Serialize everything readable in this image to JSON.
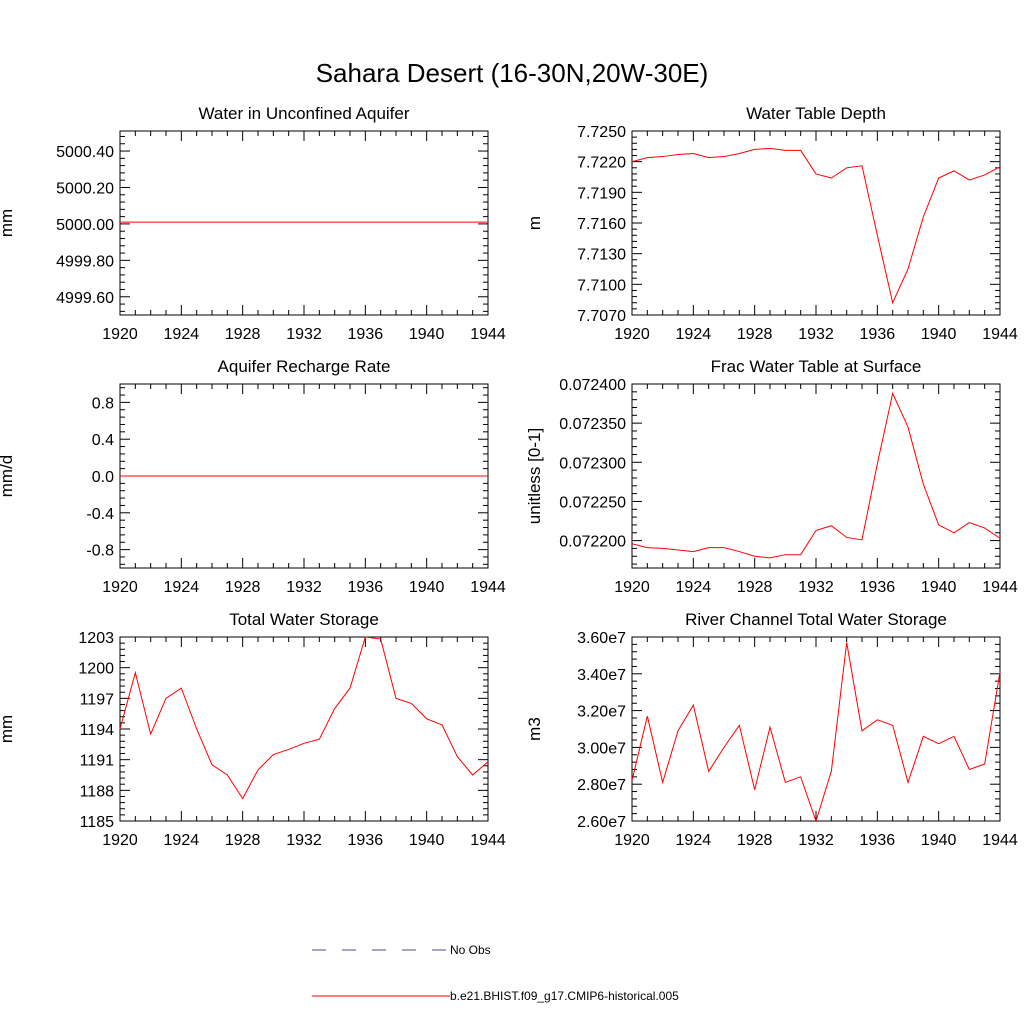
{
  "title": "Sahara Desert (16-30N,20W-30E)",
  "colors": {
    "series": "#ff0000",
    "obs": "#4a4a8a",
    "axis": "#000000"
  },
  "legend": {
    "obs_label": "No Obs",
    "model_label": "b.e21.BHIST.f09_g17.CMIP6-historical.005"
  },
  "chart_data": [
    {
      "type": "line",
      "title": "Water in Unconfined Aquifer",
      "ylabel": "mm",
      "xlim": [
        1920,
        1944
      ],
      "ylim": [
        4999.5,
        5000.51
      ],
      "xticks": [
        1920,
        1924,
        1928,
        1932,
        1936,
        1940,
        1944
      ],
      "xtick_labels": [
        "1920",
        "1924",
        "1928",
        "1932",
        "1936",
        "1940",
        "1944"
      ],
      "yticks": [
        4999.6,
        4999.8,
        5000.0,
        5000.2,
        5000.4
      ],
      "ytick_labels": [
        "4999.60",
        "4999.80",
        "5000.00",
        "5000.20",
        "5000.40"
      ],
      "x": [
        1920,
        1944
      ],
      "y": [
        5000.01,
        5000.01
      ]
    },
    {
      "type": "line",
      "title": "Water Table Depth",
      "ylabel": "m",
      "xlim": [
        1920,
        1944
      ],
      "ylim": [
        7.707,
        7.725
      ],
      "xticks": [
        1920,
        1924,
        1928,
        1932,
        1936,
        1940,
        1944
      ],
      "xtick_labels": [
        "1920",
        "1924",
        "1928",
        "1932",
        "1936",
        "1940",
        "1944"
      ],
      "yticks": [
        7.707,
        7.71,
        7.713,
        7.716,
        7.719,
        7.722,
        7.725
      ],
      "ytick_labels": [
        "7.7070",
        "7.7100",
        "7.7130",
        "7.7160",
        "7.7190",
        "7.7220",
        "7.7250"
      ],
      "x": [
        1920,
        1921,
        1922,
        1923,
        1924,
        1925,
        1926,
        1927,
        1928,
        1929,
        1930,
        1931,
        1932,
        1933,
        1934,
        1935,
        1936,
        1937,
        1938,
        1939,
        1940,
        1941,
        1942,
        1943,
        1944
      ],
      "y": [
        7.722,
        7.7224,
        7.7225,
        7.7227,
        7.7228,
        7.7224,
        7.7225,
        7.7228,
        7.7232,
        7.7233,
        7.7231,
        7.7231,
        7.7208,
        7.7204,
        7.7214,
        7.7216,
        7.7148,
        7.7082,
        7.7115,
        7.7166,
        7.7204,
        7.7211,
        7.7202,
        7.7207,
        7.7215
      ]
    },
    {
      "type": "line",
      "title": "Aquifer Recharge Rate",
      "ylabel": "mm/d",
      "xlim": [
        1920,
        1944
      ],
      "ylim": [
        -1.0,
        1.0
      ],
      "xticks": [
        1920,
        1924,
        1928,
        1932,
        1936,
        1940,
        1944
      ],
      "xtick_labels": [
        "1920",
        "1924",
        "1928",
        "1932",
        "1936",
        "1940",
        "1944"
      ],
      "yticks": [
        -0.8,
        -0.4,
        0.0,
        0.4,
        0.8
      ],
      "ytick_labels": [
        "-0.8",
        "-0.4",
        "0.0",
        "0.4",
        "0.8"
      ],
      "x": [
        1920,
        1944
      ],
      "y": [
        0.0,
        0.0
      ]
    },
    {
      "type": "line",
      "title": "Frac Water Table at Surface",
      "ylabel": "unitless [0-1]",
      "xlim": [
        1920,
        1944
      ],
      "ylim": [
        0.072165,
        0.0724
      ],
      "xticks": [
        1920,
        1924,
        1928,
        1932,
        1936,
        1940,
        1944
      ],
      "xtick_labels": [
        "1920",
        "1924",
        "1928",
        "1932",
        "1936",
        "1940",
        "1944"
      ],
      "yticks": [
        0.0722,
        0.07225,
        0.0723,
        0.07235,
        0.0724
      ],
      "ytick_labels": [
        "0.072200",
        "0.072250",
        "0.072300",
        "0.072350",
        "0.072400"
      ],
      "x": [
        1920,
        1921,
        1922,
        1923,
        1924,
        1925,
        1926,
        1927,
        1928,
        1929,
        1930,
        1931,
        1932,
        1933,
        1934,
        1935,
        1936,
        1937,
        1938,
        1939,
        1940,
        1941,
        1942,
        1943,
        1944
      ],
      "y": [
        0.072196,
        0.072191,
        0.07219,
        0.072188,
        0.072186,
        0.072191,
        0.072191,
        0.072186,
        0.07218,
        0.072178,
        0.072182,
        0.072182,
        0.072213,
        0.072219,
        0.072204,
        0.072201,
        0.072298,
        0.072388,
        0.072345,
        0.072272,
        0.07222,
        0.07221,
        0.072223,
        0.072216,
        0.072203
      ]
    },
    {
      "type": "line",
      "title": "Total Water Storage",
      "ylabel": "mm",
      "xlim": [
        1920,
        1944
      ],
      "ylim": [
        1185,
        1203
      ],
      "xticks": [
        1920,
        1924,
        1928,
        1932,
        1936,
        1940,
        1944
      ],
      "xtick_labels": [
        "1920",
        "1924",
        "1928",
        "1932",
        "1936",
        "1940",
        "1944"
      ],
      "yticks": [
        1185,
        1188,
        1191,
        1194,
        1197,
        1200,
        1203
      ],
      "ytick_labels": [
        "1185",
        "1188",
        "1191",
        "1194",
        "1197",
        "1200",
        "1203"
      ],
      "x": [
        1920,
        1921,
        1922,
        1923,
        1924,
        1925,
        1926,
        1927,
        1928,
        1929,
        1930,
        1931,
        1932,
        1933,
        1934,
        1935,
        1936,
        1937,
        1938,
        1939,
        1940,
        1941,
        1942,
        1943,
        1944
      ],
      "y": [
        1194.0,
        1199.5,
        1193.5,
        1197.0,
        1198.0,
        1194.0,
        1190.5,
        1189.5,
        1187.2,
        1190.0,
        1191.5,
        1192.0,
        1192.6,
        1193.0,
        1196.0,
        1198.0,
        1203.0,
        1202.8,
        1197.0,
        1196.5,
        1195.0,
        1194.4,
        1191.3,
        1189.5,
        1190.8
      ]
    },
    {
      "type": "line",
      "title": "River Channel Total Water Storage",
      "ylabel": "m3",
      "xlim": [
        1920,
        1944
      ],
      "ylim": [
        26000000,
        36000000
      ],
      "xticks": [
        1920,
        1924,
        1928,
        1932,
        1936,
        1940,
        1944
      ],
      "xtick_labels": [
        "1920",
        "1924",
        "1928",
        "1932",
        "1936",
        "1940",
        "1944"
      ],
      "yticks": [
        26000000,
        28000000,
        30000000,
        32000000,
        34000000,
        36000000
      ],
      "ytick_labels": [
        "2.60e7",
        "2.80e7",
        "3.00e7",
        "3.20e7",
        "3.40e7",
        "3.60e7"
      ],
      "x": [
        1920,
        1921,
        1922,
        1923,
        1924,
        1925,
        1926,
        1927,
        1928,
        1929,
        1930,
        1931,
        1932,
        1933,
        1934,
        1935,
        1936,
        1937,
        1938,
        1939,
        1940,
        1941,
        1942,
        1943,
        1944
      ],
      "y": [
        28200000,
        31700000,
        28100000,
        30900000,
        32300000,
        28700000,
        30000000,
        31200000,
        27700000,
        31100000,
        28100000,
        28400000,
        26000000,
        28700000,
        35700000,
        30900000,
        31500000,
        31200000,
        28100000,
        30600000,
        30200000,
        30600000,
        28800000,
        29100000,
        34100000
      ]
    }
  ]
}
